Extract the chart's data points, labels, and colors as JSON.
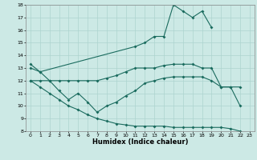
{
  "xlabel": "Humidex (Indice chaleur)",
  "xlim": [
    -0.5,
    23.5
  ],
  "ylim": [
    8,
    18
  ],
  "yticks": [
    8,
    9,
    10,
    11,
    12,
    13,
    14,
    15,
    16,
    17,
    18
  ],
  "xticks": [
    0,
    1,
    2,
    3,
    4,
    5,
    6,
    7,
    8,
    9,
    10,
    11,
    12,
    13,
    14,
    15,
    16,
    17,
    18,
    19,
    20,
    21,
    22,
    23
  ],
  "bg_color": "#cce9e5",
  "grid_color": "#add4cf",
  "line_color": "#1a6b5e",
  "line1_x": [
    0,
    1,
    11,
    12,
    13,
    14,
    15,
    16,
    17,
    18,
    19
  ],
  "line1_y": [
    13.3,
    12.7,
    14.7,
    15.0,
    15.5,
    15.5,
    18.0,
    17.5,
    17.0,
    17.5,
    16.2
  ],
  "line2_x": [
    0,
    1,
    2,
    3,
    4,
    5,
    6,
    7,
    8,
    9,
    10,
    11,
    12,
    13,
    14,
    15,
    16,
    17,
    18,
    19,
    20,
    21,
    22
  ],
  "line2_y": [
    13.0,
    12.7,
    12.0,
    12.0,
    12.0,
    12.0,
    12.0,
    12.0,
    12.2,
    12.4,
    12.7,
    13.0,
    13.0,
    13.0,
    13.2,
    13.3,
    13.3,
    13.3,
    13.0,
    13.0,
    11.5,
    11.5,
    11.5
  ],
  "line3_x": [
    0,
    1,
    2,
    3,
    4,
    5,
    6,
    7,
    8,
    9,
    10,
    11,
    12,
    13,
    14,
    15,
    16,
    17,
    18,
    19,
    20,
    21,
    22
  ],
  "line3_y": [
    12.0,
    12.0,
    12.0,
    11.2,
    10.5,
    11.0,
    10.3,
    9.5,
    10.0,
    10.3,
    10.8,
    11.2,
    11.8,
    12.0,
    12.2,
    12.3,
    12.3,
    12.3,
    12.3,
    12.0,
    11.5,
    11.5,
    10.0
  ],
  "line4_x": [
    0,
    1,
    2,
    3,
    4,
    5,
    6,
    7,
    8,
    9,
    10,
    11,
    12,
    13,
    14,
    15,
    16,
    17,
    18,
    19,
    20,
    21,
    22
  ],
  "line4_y": [
    12.0,
    11.5,
    11.0,
    10.5,
    10.0,
    9.7,
    9.3,
    9.0,
    8.8,
    8.6,
    8.5,
    8.4,
    8.4,
    8.4,
    8.4,
    8.3,
    8.3,
    8.3,
    8.3,
    8.3,
    8.3,
    8.2,
    8.0
  ]
}
